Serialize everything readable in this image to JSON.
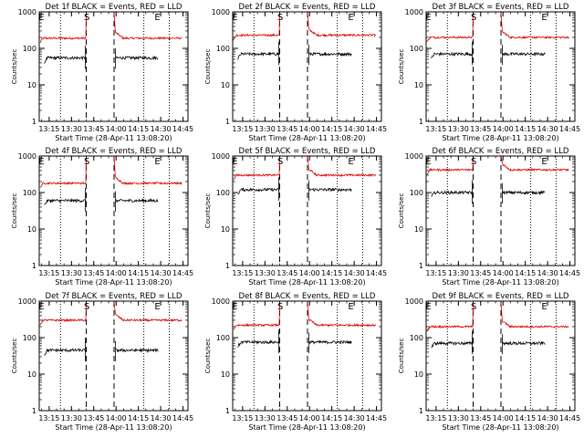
{
  "chart_data": {
    "type": "line",
    "shared": {
      "xlabel": "Start Time (28-Apr-11 13:08:20)",
      "ylabel": "Counts/sec",
      "x_tick_labels": [
        "13:15",
        "13:30",
        "13:45",
        "14:00",
        "14:15",
        "14:30",
        "14:45"
      ],
      "x_tick_minutes": [
        6.67,
        21.67,
        36.67,
        51.67,
        66.67,
        81.67,
        96.67
      ],
      "xlim_minutes": [
        0,
        100
      ],
      "y_scale": "log",
      "ylim": [
        1,
        1000
      ],
      "y_tick_labels": [
        "1",
        "10",
        "100",
        "1000"
      ],
      "dotted_lines_minutes": [
        14.3,
        70.3,
        87.4
      ],
      "dashed_lines_minutes": [
        31.6,
        50.3
      ],
      "gap_minutes": [
        31.6,
        50.3
      ],
      "annotations": [
        {
          "text": "E",
          "x_minutes": 1.5
        },
        {
          "text": "S",
          "x_minutes": 32.0
        },
        {
          "text": "E",
          "x_minutes": 79.5
        }
      ],
      "series_colors": {
        "events": "#000000",
        "lld": "#dd0000"
      },
      "grid": false
    },
    "panels": [
      {
        "title": "Det 1f BLACK = Events, RED = LLD",
        "events_level": 55,
        "lld_level": 190
      },
      {
        "title": "Det 2f BLACK = Events, RED = LLD",
        "events_level": 70,
        "lld_level": 230
      },
      {
        "title": "Det 3f BLACK = Events, RED = LLD",
        "events_level": 70,
        "lld_level": 200
      },
      {
        "title": "Det 4f BLACK = Events, RED = LLD",
        "events_level": 60,
        "lld_level": 180
      },
      {
        "title": "Det 5f BLACK = Events, RED = LLD",
        "events_level": 120,
        "lld_level": 300
      },
      {
        "title": "Det 6f BLACK = Events, RED = LLD",
        "events_level": 100,
        "lld_level": 420
      },
      {
        "title": "Det 7f BLACK = Events, RED = LLD",
        "events_level": 45,
        "lld_level": 300
      },
      {
        "title": "Det 8f BLACK = Events, RED = LLD",
        "events_level": 75,
        "lld_level": 220
      },
      {
        "title": "Det 9f BLACK = Events, RED = LLD",
        "events_level": 70,
        "lld_level": 200
      }
    ]
  }
}
